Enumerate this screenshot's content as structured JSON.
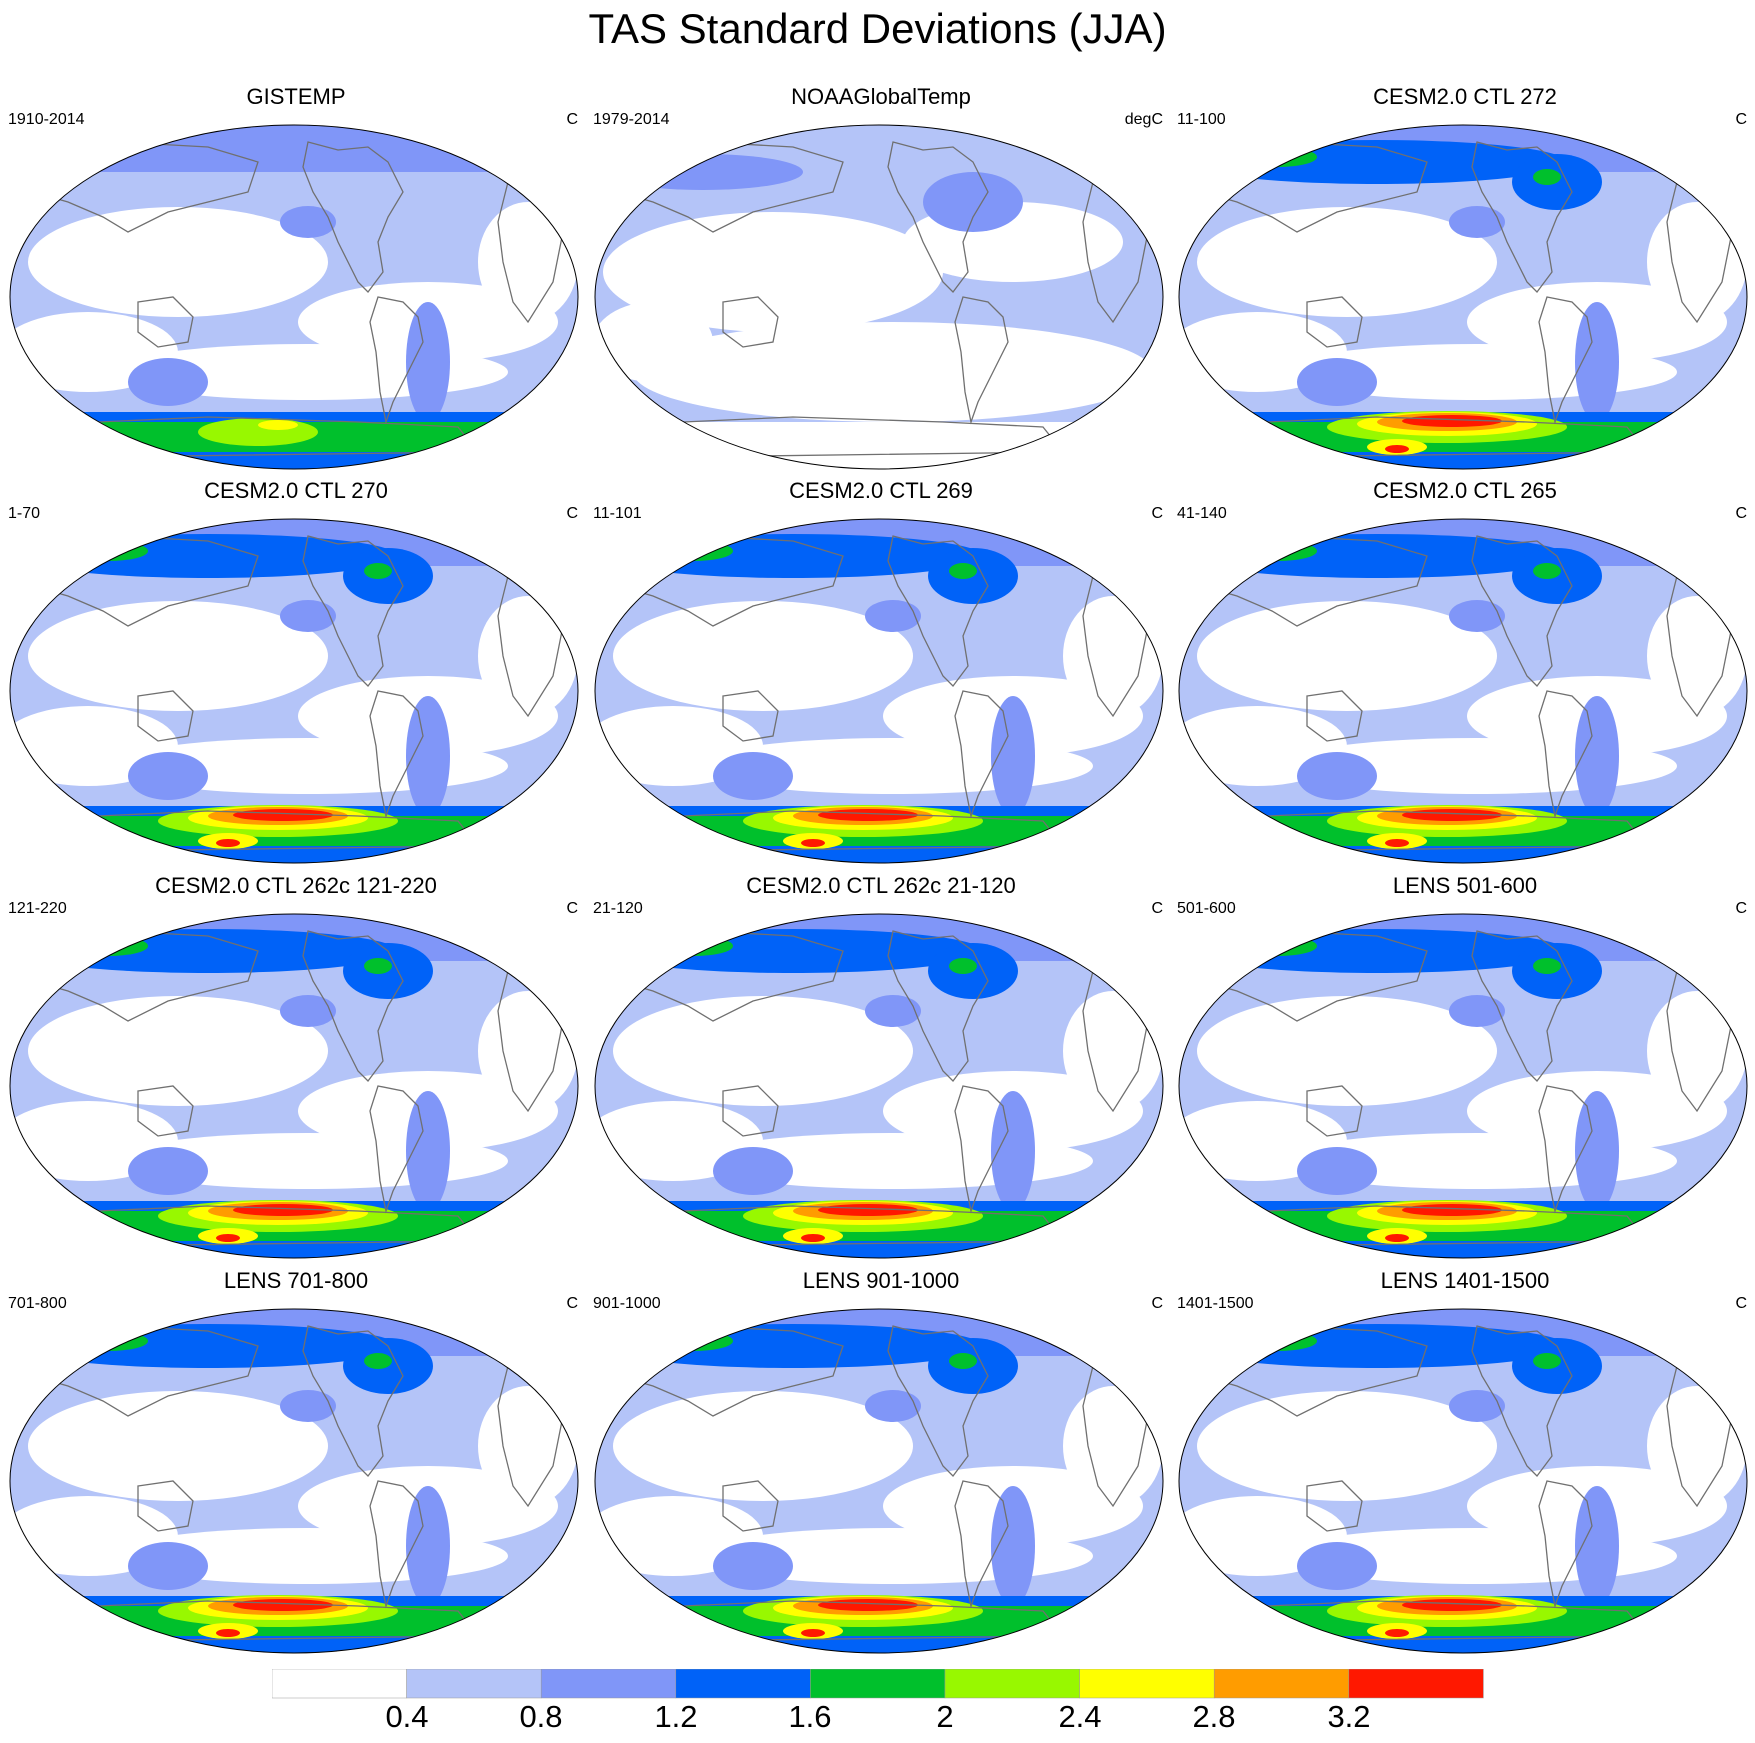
{
  "title": "TAS Standard Deviations (JJA)",
  "panels": [
    {
      "title": "GISTEMP",
      "range": "1910-2014",
      "units": "C",
      "kind": "obs-gistemp"
    },
    {
      "title": "NOAAGlobalTemp",
      "range": "1979-2014",
      "units": "degC",
      "kind": "obs-noaa"
    },
    {
      "title": "CESM2.0 CTL 272",
      "range": "11-100",
      "units": "C",
      "kind": "model"
    },
    {
      "title": "CESM2.0 CTL 270",
      "range": "1-70",
      "units": "C",
      "kind": "model"
    },
    {
      "title": "CESM2.0 CTL 269",
      "range": "11-101",
      "units": "C",
      "kind": "model"
    },
    {
      "title": "CESM2.0 CTL 265",
      "range": "41-140",
      "units": "C",
      "kind": "model"
    },
    {
      "title": "CESM2.0 CTL 262c 121-220",
      "range": "121-220",
      "units": "C",
      "kind": "model"
    },
    {
      "title": "CESM2.0 CTL 262c 21-120",
      "range": "21-120",
      "units": "C",
      "kind": "model"
    },
    {
      "title": "LENS 501-600",
      "range": "501-600",
      "units": "C",
      "kind": "lens"
    },
    {
      "title": "LENS 701-800",
      "range": "701-800",
      "units": "C",
      "kind": "lens"
    },
    {
      "title": "LENS 901-1000",
      "range": "901-1000",
      "units": "C",
      "kind": "lens"
    },
    {
      "title": "LENS 1401-1500",
      "range": "1401-1500",
      "units": "C",
      "kind": "lens"
    }
  ],
  "colorbar": {
    "labels": [
      "0.4",
      "0.8",
      "1.2",
      "1.6",
      "2",
      "2.4",
      "2.8",
      "3.2"
    ],
    "colors": [
      "#ffffff",
      "#b4c4f8",
      "#8096f8",
      "#0062f8",
      "#00c02c",
      "#98f800",
      "#ffff00",
      "#ff9c00",
      "#ff1800"
    ]
  }
}
